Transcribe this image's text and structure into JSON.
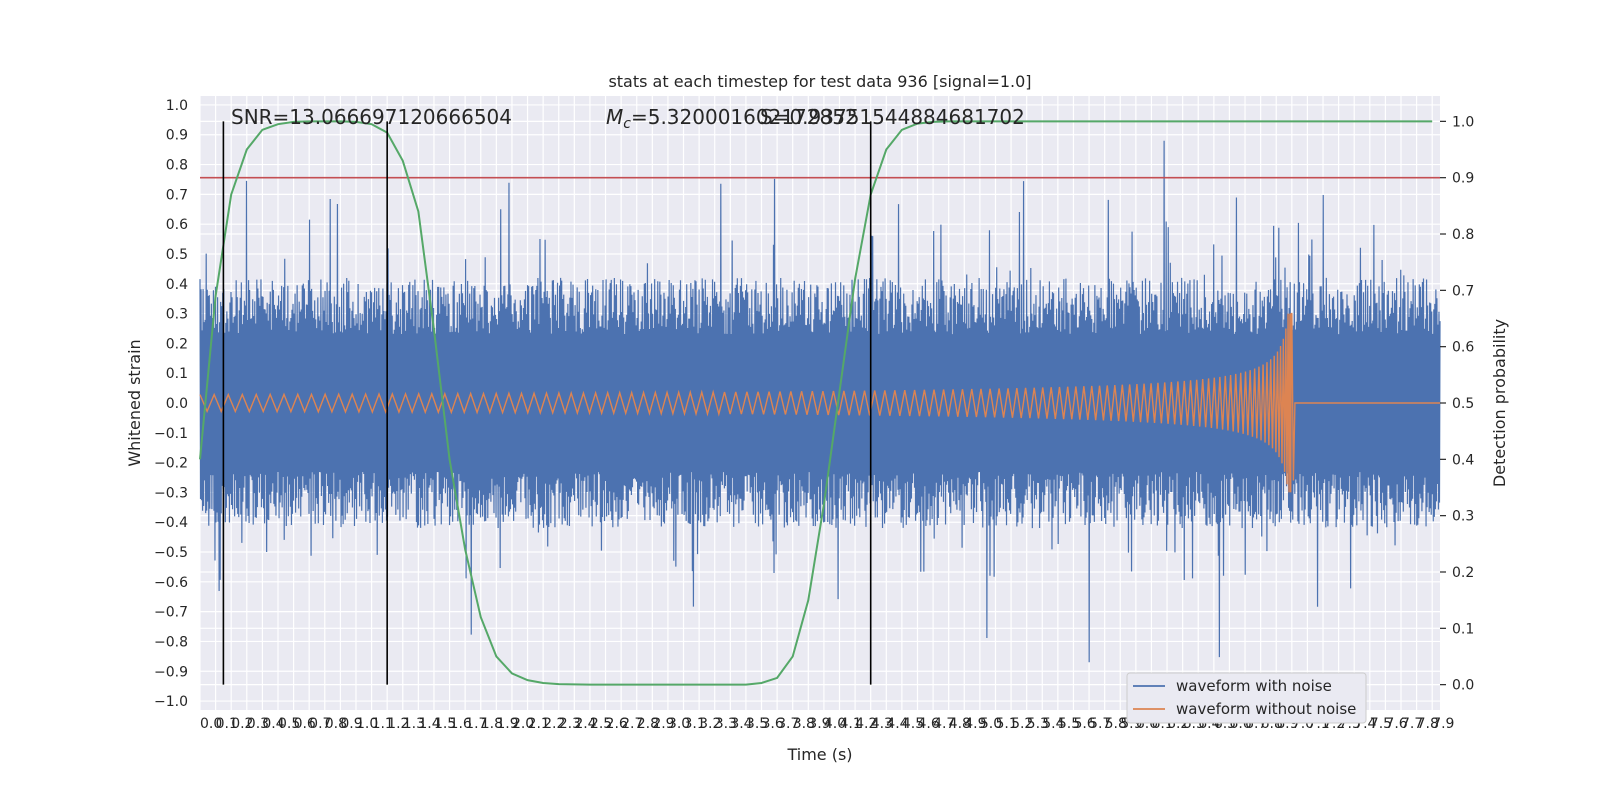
{
  "chart_data": {
    "type": "line",
    "title": "stats at each timestep for test data 936 [signal=1.0]",
    "xlabel": "Time (s)",
    "ylabel": "Whitened strain",
    "y2label": "Detection probability",
    "xlim": [
      0.0,
      7.95
    ],
    "ylim": [
      -1.03,
      1.03
    ],
    "y2lim": [
      -0.045,
      1.045
    ],
    "x_ticks": [
      "0.0",
      "0.1",
      "0.2",
      "0.3",
      "0.4",
      "0.5",
      "0.6",
      "0.7",
      "0.8",
      "0.9",
      "1.0",
      "1.1",
      "1.2",
      "1.3",
      "1.4",
      "1.5",
      "1.6",
      "1.7",
      "1.8",
      "1.9",
      "2.0",
      "2.1",
      "2.2",
      "2.3",
      "2.4",
      "2.5",
      "2.6",
      "2.7",
      "2.8",
      "2.9",
      "3.0",
      "3.1",
      "3.2",
      "3.3",
      "3.4",
      "3.5",
      "3.6",
      "3.7",
      "3.8",
      "3.9",
      "4.0",
      "4.1",
      "4.2",
      "4.3",
      "4.4",
      "4.5",
      "4.6",
      "4.7",
      "4.8",
      "4.9",
      "5.0",
      "5.1",
      "5.2",
      "5.3",
      "5.4",
      "5.5",
      "5.6",
      "5.7",
      "5.8",
      "5.9",
      "6.0",
      "6.1",
      "6.2",
      "6.3",
      "6.4",
      "6.5",
      "6.6",
      "6.7",
      "6.8",
      "6.9",
      "7.0",
      "7.1",
      "7.2",
      "7.3",
      "7.4",
      "7.5",
      "7.6",
      "7.7",
      "7.8",
      "7.9"
    ],
    "y_ticks": [
      "1.0",
      "0.9",
      "0.8",
      "0.7",
      "0.6",
      "0.5",
      "0.4",
      "0.3",
      "0.2",
      "0.1",
      "0.0",
      "−0.1",
      "−0.2",
      "−0.3",
      "−0.4",
      "−0.5",
      "−0.6",
      "−0.7",
      "−0.8",
      "−0.9",
      "−1.0"
    ],
    "y2_ticks": [
      "1.0",
      "0.9",
      "0.8",
      "0.7",
      "0.6",
      "0.5",
      "0.4",
      "0.3",
      "0.2",
      "0.1",
      "0.0"
    ],
    "annotations": {
      "snr": "SNR=13.066697120666504",
      "mc": "M_c=5.320001602172852",
      "overlap": "S=0.93751544884681702"
    },
    "series": [
      {
        "name": "waveform with noise",
        "color": "#4c72b0",
        "kind": "noise",
        "envelope": 0.42,
        "peak_max": 0.88
      },
      {
        "name": "waveform without noise",
        "color": "#dd8452",
        "kind": "chirp",
        "t_merger": 7.0,
        "start_amp": 0.028,
        "peak_amp": 0.3
      },
      {
        "name": "",
        "color": "#55a868",
        "kind": "probability",
        "x": [
          0.0,
          0.1,
          0.2,
          0.3,
          0.4,
          0.5,
          0.6,
          0.7,
          0.8,
          0.9,
          1.0,
          1.1,
          1.2,
          1.3,
          1.4,
          1.5,
          1.6,
          1.7,
          1.8,
          1.9,
          2.0,
          2.1,
          2.2,
          2.3,
          2.5,
          2.7,
          3.0,
          3.3,
          3.5,
          3.6,
          3.7,
          3.8,
          3.9,
          4.0,
          4.1,
          4.2,
          4.3,
          4.4,
          4.5,
          4.6,
          4.7,
          4.8,
          5.0,
          6.0,
          7.0,
          7.9
        ],
        "y": [
          0.4,
          0.69,
          0.87,
          0.95,
          0.985,
          0.995,
          0.999,
          1.0,
          1.0,
          1.0,
          0.999,
          0.995,
          0.98,
          0.93,
          0.84,
          0.63,
          0.4,
          0.24,
          0.12,
          0.05,
          0.02,
          0.008,
          0.003,
          0.001,
          0.0,
          0.0,
          0.0,
          0.0,
          0.0,
          0.003,
          0.012,
          0.05,
          0.15,
          0.32,
          0.52,
          0.72,
          0.87,
          0.95,
          0.985,
          0.996,
          0.999,
          1.0,
          1.0,
          1.0,
          1.0,
          1.0
        ]
      }
    ],
    "threshold": {
      "value": 0.9,
      "color": "#c44e52"
    },
    "vlines": [
      0.15,
      1.2,
      4.3
    ],
    "legend_position": "lower right",
    "grid": true
  }
}
